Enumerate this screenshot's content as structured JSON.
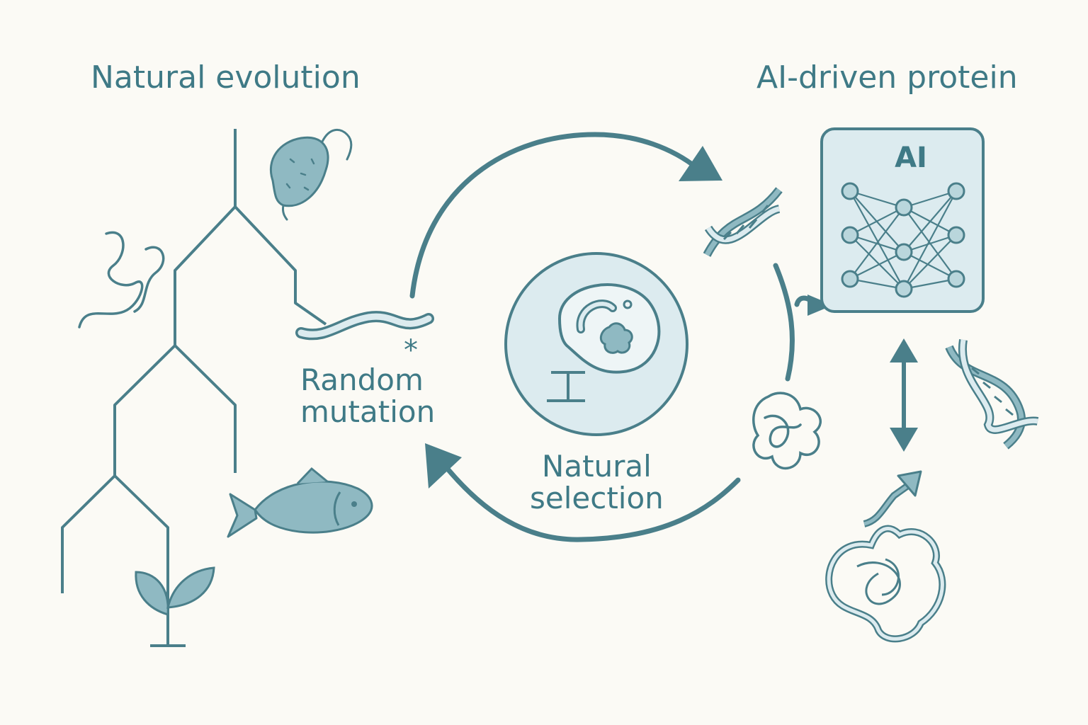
{
  "labels": {
    "natural_evolution": "Natural evolution",
    "ai_driven": "AI-driven protein",
    "random_line1": "Random",
    "random_line2": "mutation",
    "natural_line1": "Natural",
    "natural_line2": "selection",
    "ai_box": "AI",
    "mutation_star": "*"
  },
  "colors": {
    "background": "#fbfaf5",
    "stroke": "#4a7f8a",
    "fill_light": "#dcebef",
    "fill_mid": "#8fb9c2",
    "text": "#3f7a86"
  }
}
